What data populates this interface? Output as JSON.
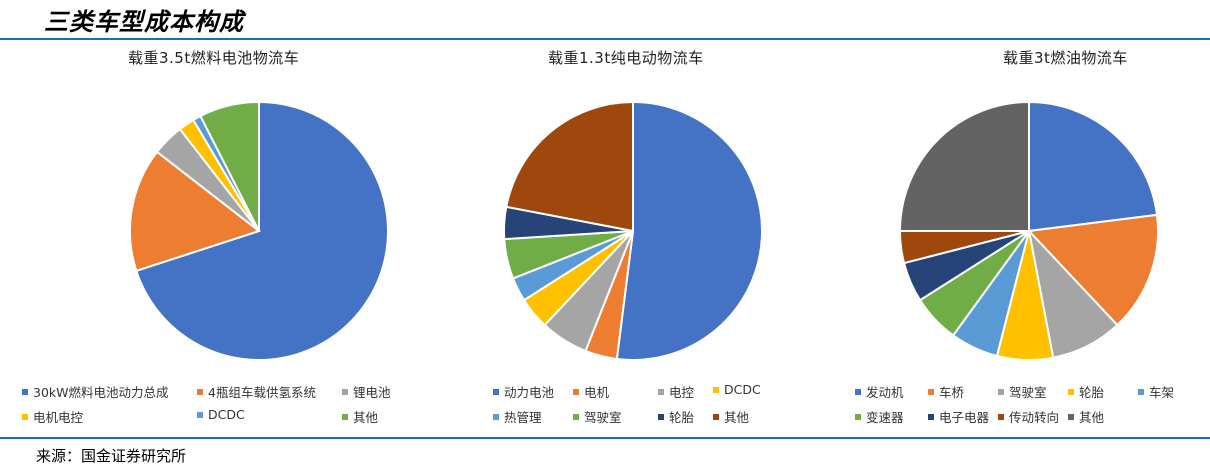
{
  "page": {
    "title": "三类车型成本构成",
    "source": "来源：国金证券研究所"
  },
  "chart_data": [
    {
      "type": "pie",
      "title": "载重3.5t燃料电池物流车",
      "categories": [
        "30kW燃料电池动力总成",
        "4瓶组车载供氢系统",
        "锂电池",
        "电机电控",
        "DCDC",
        "其他"
      ],
      "values": [
        70,
        15.5,
        4,
        2,
        1,
        7.5
      ],
      "colors": [
        "#4472C4",
        "#ED7D31",
        "#A5A5A5",
        "#FFC000",
        "#5B9BD5",
        "#70AD47"
      ],
      "legend_position": "bottom"
    },
    {
      "type": "pie",
      "title": "载重1.3t纯电动物流车",
      "categories": [
        "动力电池",
        "电机",
        "电控",
        "DCDC",
        "热管理",
        "驾驶室",
        "轮胎",
        "其他"
      ],
      "values": [
        52,
        4,
        6,
        4,
        3,
        5,
        4,
        22
      ],
      "colors": [
        "#4472C4",
        "#ED7D31",
        "#A5A5A5",
        "#FFC000",
        "#5B9BD5",
        "#70AD47",
        "#264478",
        "#9E480E"
      ],
      "legend_position": "bottom"
    },
    {
      "type": "pie",
      "title": "载重3t燃油物流车",
      "categories": [
        "发动机",
        "车桥",
        "驾驶室",
        "轮胎",
        "车架",
        "变速器",
        "电子电器",
        "传动转向",
        "其他"
      ],
      "values": [
        23,
        15,
        9,
        7,
        6,
        6,
        5,
        4,
        25
      ],
      "colors": [
        "#4472C4",
        "#ED7D31",
        "#A5A5A5",
        "#FFC000",
        "#5B9BD5",
        "#70AD47",
        "#264478",
        "#9E480E",
        "#636363"
      ],
      "legend_position": "bottom"
    }
  ]
}
